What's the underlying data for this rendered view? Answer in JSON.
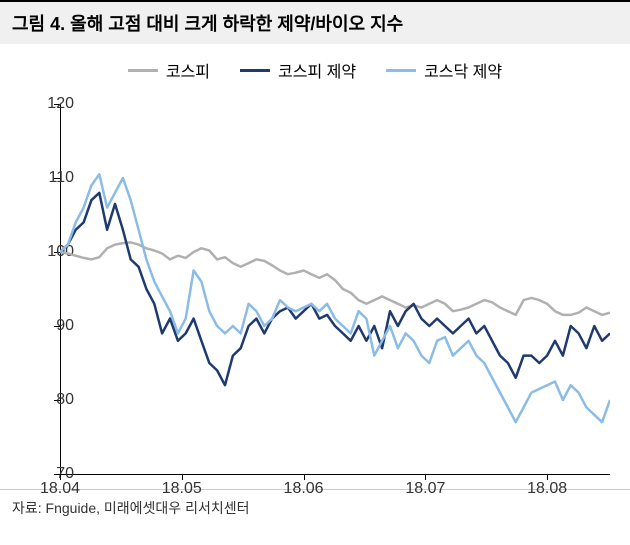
{
  "title": "그림 4. 올해 고점 대비 크게 하락한 제약/바이오 지수",
  "source": "자료: Fnguide, 미래에셋대우 리서치센터",
  "chart": {
    "type": "line",
    "ylim": [
      70,
      120
    ],
    "ytick_step": 10,
    "yticks": [
      70,
      80,
      90,
      100,
      110,
      120
    ],
    "xlabels": [
      "18.04",
      "18.05",
      "18.06",
      "18.07",
      "18.08"
    ],
    "xrange": [
      0,
      140
    ],
    "xtick_positions": [
      0,
      31,
      62,
      93,
      124
    ],
    "background_color": "#ffffff",
    "axis_color": "#000000",
    "title_bg": "#f0f0f0",
    "title_fontsize": 18,
    "label_fontsize": 16,
    "line_width": 2.5,
    "series": [
      {
        "name": "코스피",
        "color": "#b0b0b0",
        "data": [
          [
            0,
            100
          ],
          [
            2,
            99.8
          ],
          [
            4,
            99.5
          ],
          [
            6,
            99.2
          ],
          [
            8,
            99.0
          ],
          [
            10,
            99.3
          ],
          [
            12,
            100.5
          ],
          [
            14,
            101.0
          ],
          [
            16,
            101.2
          ],
          [
            18,
            101.3
          ],
          [
            20,
            101.0
          ],
          [
            22,
            100.5
          ],
          [
            24,
            100.2
          ],
          [
            26,
            99.8
          ],
          [
            28,
            99.0
          ],
          [
            30,
            99.5
          ],
          [
            32,
            99.2
          ],
          [
            34,
            100.0
          ],
          [
            36,
            100.5
          ],
          [
            38,
            100.2
          ],
          [
            40,
            99.0
          ],
          [
            42,
            99.3
          ],
          [
            44,
            98.5
          ],
          [
            46,
            98.0
          ],
          [
            48,
            98.5
          ],
          [
            50,
            99.0
          ],
          [
            52,
            98.8
          ],
          [
            54,
            98.2
          ],
          [
            56,
            97.5
          ],
          [
            58,
            97.0
          ],
          [
            60,
            97.2
          ],
          [
            62,
            97.5
          ],
          [
            64,
            97.0
          ],
          [
            66,
            96.5
          ],
          [
            68,
            97.0
          ],
          [
            70,
            96.2
          ],
          [
            72,
            95.0
          ],
          [
            74,
            94.5
          ],
          [
            76,
            93.5
          ],
          [
            78,
            93.0
          ],
          [
            80,
            93.5
          ],
          [
            82,
            94.0
          ],
          [
            84,
            93.5
          ],
          [
            86,
            93.0
          ],
          [
            88,
            92.5
          ],
          [
            90,
            92.8
          ],
          [
            92,
            92.5
          ],
          [
            94,
            93.0
          ],
          [
            96,
            93.5
          ],
          [
            98,
            93.0
          ],
          [
            100,
            92.0
          ],
          [
            102,
            92.2
          ],
          [
            104,
            92.5
          ],
          [
            106,
            93.0
          ],
          [
            108,
            93.5
          ],
          [
            110,
            93.2
          ],
          [
            112,
            92.5
          ],
          [
            114,
            92.0
          ],
          [
            116,
            91.5
          ],
          [
            118,
            93.5
          ],
          [
            120,
            93.8
          ],
          [
            122,
            93.5
          ],
          [
            124,
            93.0
          ],
          [
            126,
            92.0
          ],
          [
            128,
            91.5
          ],
          [
            130,
            91.5
          ],
          [
            132,
            91.8
          ],
          [
            134,
            92.5
          ],
          [
            136,
            92.0
          ],
          [
            138,
            91.5
          ],
          [
            140,
            91.8
          ]
        ]
      },
      {
        "name": "코스피 제약",
        "color": "#1f3a6e",
        "data": [
          [
            0,
            100
          ],
          [
            2,
            101
          ],
          [
            4,
            103
          ],
          [
            6,
            104
          ],
          [
            8,
            107
          ],
          [
            10,
            108
          ],
          [
            12,
            103
          ],
          [
            14,
            106.5
          ],
          [
            16,
            103
          ],
          [
            18,
            99
          ],
          [
            20,
            98
          ],
          [
            22,
            95
          ],
          [
            24,
            93
          ],
          [
            26,
            89
          ],
          [
            28,
            91
          ],
          [
            30,
            88
          ],
          [
            32,
            89
          ],
          [
            34,
            91
          ],
          [
            36,
            88
          ],
          [
            38,
            85
          ],
          [
            40,
            84
          ],
          [
            42,
            82
          ],
          [
            44,
            86
          ],
          [
            46,
            87
          ],
          [
            48,
            90
          ],
          [
            50,
            91
          ],
          [
            52,
            89
          ],
          [
            54,
            91
          ],
          [
            56,
            92
          ],
          [
            58,
            92.5
          ],
          [
            60,
            91
          ],
          [
            62,
            92
          ],
          [
            64,
            93
          ],
          [
            66,
            91
          ],
          [
            68,
            91.5
          ],
          [
            70,
            90
          ],
          [
            72,
            89
          ],
          [
            74,
            88
          ],
          [
            76,
            90
          ],
          [
            78,
            88
          ],
          [
            80,
            90
          ],
          [
            82,
            87
          ],
          [
            84,
            92
          ],
          [
            86,
            90
          ],
          [
            88,
            92
          ],
          [
            90,
            93
          ],
          [
            92,
            91
          ],
          [
            94,
            90
          ],
          [
            96,
            91
          ],
          [
            98,
            90
          ],
          [
            100,
            89
          ],
          [
            102,
            90
          ],
          [
            104,
            91
          ],
          [
            106,
            89
          ],
          [
            108,
            90
          ],
          [
            110,
            88
          ],
          [
            112,
            86
          ],
          [
            114,
            85
          ],
          [
            116,
            83
          ],
          [
            118,
            86
          ],
          [
            120,
            86
          ],
          [
            122,
            85
          ],
          [
            124,
            86
          ],
          [
            126,
            88
          ],
          [
            128,
            86
          ],
          [
            130,
            90
          ],
          [
            132,
            89
          ],
          [
            134,
            87
          ],
          [
            136,
            90
          ],
          [
            138,
            88
          ],
          [
            140,
            89
          ]
        ]
      },
      {
        "name": "코스닥 제약",
        "color": "#8abce5",
        "data": [
          [
            0,
            100
          ],
          [
            2,
            101
          ],
          [
            4,
            104
          ],
          [
            6,
            106
          ],
          [
            8,
            109
          ],
          [
            10,
            110.5
          ],
          [
            12,
            106
          ],
          [
            14,
            108
          ],
          [
            16,
            110
          ],
          [
            18,
            107
          ],
          [
            20,
            103
          ],
          [
            22,
            99
          ],
          [
            24,
            96
          ],
          [
            26,
            94
          ],
          [
            28,
            92
          ],
          [
            30,
            89
          ],
          [
            32,
            91
          ],
          [
            34,
            97.5
          ],
          [
            36,
            96
          ],
          [
            38,
            92
          ],
          [
            40,
            90
          ],
          [
            42,
            89
          ],
          [
            44,
            90
          ],
          [
            46,
            89
          ],
          [
            48,
            93
          ],
          [
            50,
            92
          ],
          [
            52,
            90
          ],
          [
            54,
            91
          ],
          [
            56,
            93.5
          ],
          [
            58,
            92.5
          ],
          [
            60,
            92
          ],
          [
            62,
            92.5
          ],
          [
            64,
            93
          ],
          [
            66,
            92
          ],
          [
            68,
            93
          ],
          [
            70,
            91
          ],
          [
            72,
            90
          ],
          [
            74,
            89
          ],
          [
            76,
            92
          ],
          [
            78,
            91
          ],
          [
            80,
            86
          ],
          [
            82,
            88
          ],
          [
            84,
            90
          ],
          [
            86,
            87
          ],
          [
            88,
            89
          ],
          [
            90,
            88
          ],
          [
            92,
            86
          ],
          [
            94,
            85
          ],
          [
            96,
            88
          ],
          [
            98,
            88.5
          ],
          [
            100,
            86
          ],
          [
            102,
            87
          ],
          [
            104,
            88
          ],
          [
            106,
            86
          ],
          [
            108,
            85
          ],
          [
            110,
            83
          ],
          [
            112,
            81
          ],
          [
            114,
            79
          ],
          [
            116,
            77
          ],
          [
            118,
            79
          ],
          [
            120,
            81
          ],
          [
            122,
            81.5
          ],
          [
            124,
            82
          ],
          [
            126,
            82.5
          ],
          [
            128,
            80
          ],
          [
            130,
            82
          ],
          [
            132,
            81
          ],
          [
            134,
            79
          ],
          [
            136,
            78
          ],
          [
            138,
            77
          ],
          [
            140,
            80
          ]
        ]
      }
    ]
  }
}
